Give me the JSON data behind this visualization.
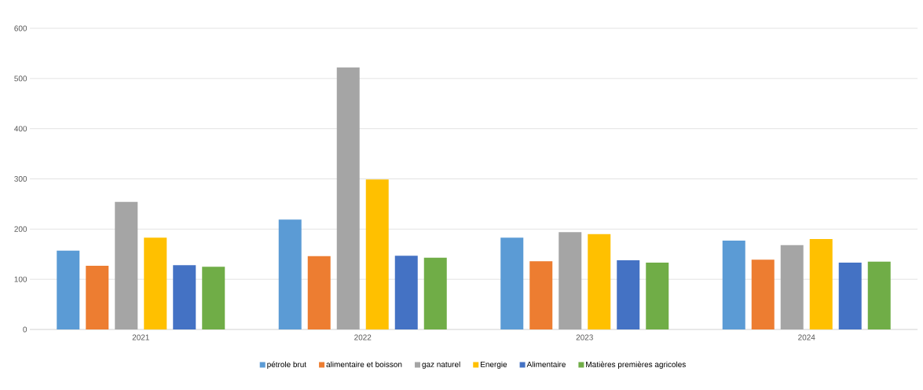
{
  "chart_data": {
    "type": "bar",
    "categories": [
      "2021",
      "2022",
      "2023",
      "2024"
    ],
    "series": [
      {
        "name": "pétrole brut",
        "color": "#5b9bd5",
        "values": [
          157,
          219,
          183,
          177
        ]
      },
      {
        "name": "alimentaire et boisson",
        "color": "#ed7d31",
        "values": [
          127,
          146,
          136,
          139
        ]
      },
      {
        "name": "gaz naturel",
        "color": "#a5a5a5",
        "values": [
          254,
          522,
          194,
          168
        ]
      },
      {
        "name": "Energie",
        "color": "#ffc000",
        "values": [
          183,
          299,
          190,
          180
        ]
      },
      {
        "name": "Alimentaire",
        "color": "#4472c4",
        "values": [
          128,
          147,
          138,
          133
        ]
      },
      {
        "name": "Matières premières agricoles",
        "color": "#70ad47",
        "values": [
          125,
          143,
          133,
          135
        ]
      }
    ],
    "ylim": [
      0,
      600
    ],
    "yticks": [
      0,
      100,
      200,
      300,
      400,
      500,
      600
    ],
    "grid": "y",
    "legend": "bottom"
  }
}
